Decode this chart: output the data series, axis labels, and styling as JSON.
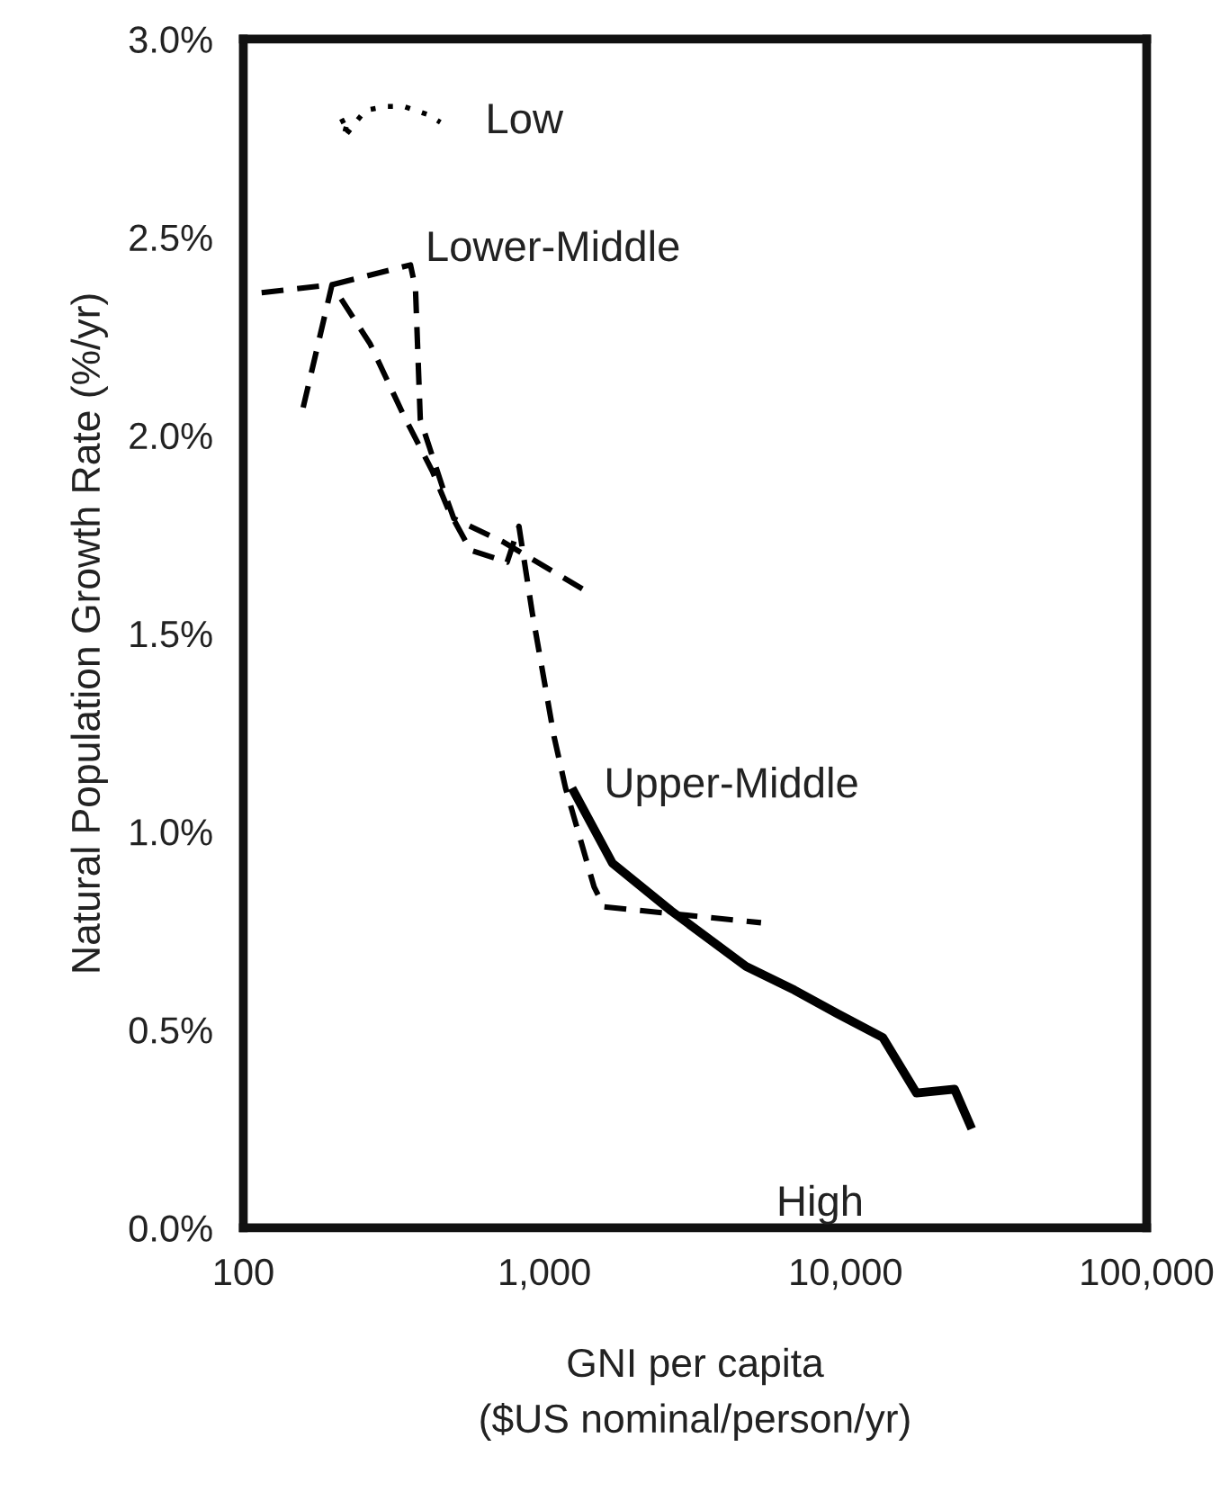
{
  "chart_data": {
    "type": "line",
    "xlabel": "GNI per capita\n($US nominal/person/yr)",
    "ylabel": "Natural Population Growth Rate (%/yr)",
    "log": "x",
    "grid": false,
    "legend": false,
    "marker": "none",
    "xlim": [
      100,
      100000
    ],
    "xticks": [
      {
        "value": 100,
        "label": "100"
      },
      {
        "value": 1000,
        "label": "1,000"
      },
      {
        "value": 10000,
        "label": "10,000"
      },
      {
        "value": 100000,
        "label": "100,000"
      }
    ],
    "ylim": [
      0,
      3.0
    ],
    "yticks": [
      {
        "value": 0,
        "label": "0.0%"
      },
      {
        "value": 0.5,
        "label": "0.5%"
      },
      {
        "value": 1.0,
        "label": "1.0%"
      },
      {
        "value": 1.5,
        "label": "1.5%"
      },
      {
        "value": 2.0,
        "label": "2.0%"
      },
      {
        "value": 2.5,
        "label": "2.5%"
      },
      {
        "value": 3.0,
        "label": "3.0%"
      }
    ],
    "series": [
      {
        "name": "Low",
        "color": "#000000",
        "line_style": "dotted",
        "x": [
          210,
          223,
          215,
          254,
          300,
          341,
          407,
          451
        ],
        "values": [
          2.79,
          2.8,
          2.75,
          2.82,
          2.83,
          2.83,
          2.81,
          2.79
        ]
      },
      {
        "name": "Lower-Middle",
        "color": "#000000",
        "line_style": "dashed",
        "x": [
          115,
          197,
          359,
          373,
          387,
          463,
          500,
          733,
          1425
        ],
        "values": [
          2.36,
          2.38,
          2.43,
          2.37,
          2.04,
          1.86,
          1.79,
          1.73,
          1.6
        ]
      },
      {
        "name": "Upper-Middle",
        "color": "#000000",
        "line_style": "dashed",
        "x": [
          158,
          197,
          264,
          341,
          424,
          481,
          568,
          752,
          823,
          912,
          1076,
          1175,
          1462,
          1578,
          5240
        ],
        "values": [
          2.07,
          2.38,
          2.23,
          2.05,
          1.91,
          1.81,
          1.71,
          1.68,
          1.77,
          1.55,
          1.24,
          1.11,
          0.86,
          0.81,
          0.77
        ]
      },
      {
        "name": "High",
        "color": "#000000",
        "line_style": "solid",
        "x": [
          1254,
          1682,
          2633,
          4670,
          6760,
          9420,
          13300,
          17200,
          23000,
          25900
        ],
        "values": [
          1.1,
          0.92,
          0.8,
          0.66,
          0.6,
          0.54,
          0.48,
          0.34,
          0.35,
          0.26
        ]
      }
    ]
  }
}
